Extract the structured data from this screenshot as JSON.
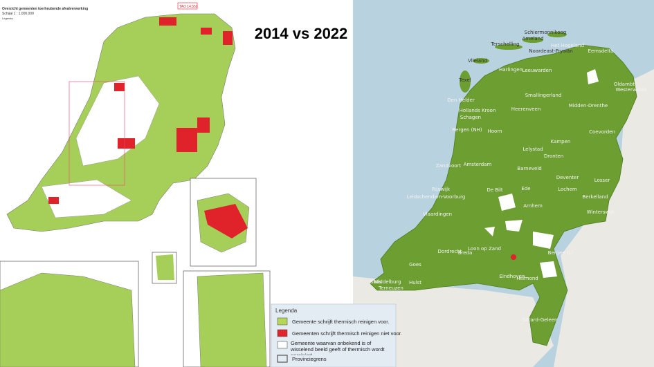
{
  "title": "2014 vs 2022",
  "left_map": {
    "header": "Overzicht gemeenten toerheubende afvalverwerking",
    "scale": "Schaal 1 : 1.000.000",
    "legend_title": "Legenda",
    "code": "TAO 14.551"
  },
  "legend": {
    "title": "Legenda",
    "items": [
      "Gemeente schrijft thermisch reinigen voor.",
      "Gemeenten schrijft thermisch reinigen niet voor.",
      "Gemeente  waarvan onbekend is of wisselend beeld geeft  of  thermisch wordt gereinigd.",
      "Provinciegrens"
    ]
  },
  "right_map": {
    "labels": [
      "Schiermonnikoog",
      "Ameland",
      "Terschelling",
      "Vlieland",
      "Texel",
      "Den Helder",
      "Het Hogeland",
      "Eemsdelta",
      "Noardeast-Fryslân",
      "Leeuwarden",
      "Harlingen",
      "Oldambt",
      "Westerwolde",
      "Smallingerland",
      "Heerenveen",
      "Midden-Drenthe",
      "Coevorden",
      "Hollands Kroon",
      "Schagen",
      "Bergen (NH)",
      "Hoorn",
      "Lelystad",
      "Kampen",
      "Dronten",
      "Zandvoort",
      "Amsterdam",
      "Barneveld",
      "Deventer",
      "Losser",
      "Lochem",
      "Berkelland",
      "Winterswijk",
      "De Bilt",
      "Ede",
      "Arnhem",
      "Rijswijk",
      "Leidschendam-Voorburg",
      "Vlaardingen",
      "Dordrecht",
      "Breda",
      "Loon op Zand",
      "Bergen (L)",
      "Goes",
      "Middelburg",
      "Sluis",
      "Hulst",
      "Terneuzen",
      "Eindhoven",
      "Helmond",
      "Sittard-Geleen"
    ]
  }
}
